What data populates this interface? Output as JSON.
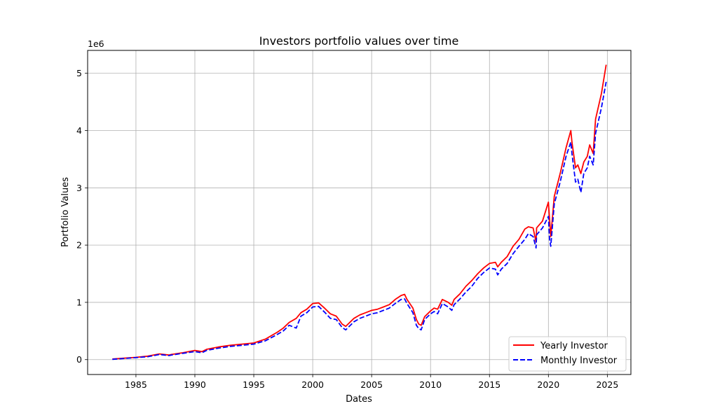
{
  "chart_data": {
    "type": "line",
    "title": "Investors portfolio values over time",
    "xlabel": "Dates",
    "ylabel": "Portfolio Values",
    "y_offset_label": "1e6",
    "x_ticks": [
      1985,
      1990,
      1995,
      2000,
      2005,
      2010,
      2015,
      2020,
      2025
    ],
    "y_ticks": [
      0,
      1,
      2,
      3,
      4,
      5
    ],
    "xlim": [
      1980.9,
      2027.0
    ],
    "ylim": [
      -0.26,
      5.4
    ],
    "grid": true,
    "legend_position": "bottom-right",
    "x": [
      1983.0,
      1984.0,
      1985.0,
      1986.0,
      1987.0,
      1987.8,
      1988.0,
      1989.0,
      1990.0,
      1990.6,
      1991.0,
      1992.0,
      1993.0,
      1994.0,
      1995.0,
      1996.0,
      1997.0,
      1997.5,
      1998.0,
      1998.6,
      1999.0,
      1999.5,
      2000.0,
      2000.5,
      2001.0,
      2001.5,
      2002.0,
      2002.5,
      2002.8,
      2003.0,
      2003.5,
      2004.0,
      2004.5,
      2005.0,
      2005.5,
      2006.0,
      2006.5,
      2007.0,
      2007.5,
      2007.8,
      2008.0,
      2008.5,
      2008.8,
      2009.0,
      2009.2,
      2009.5,
      2010.0,
      2010.3,
      2010.6,
      2011.0,
      2011.5,
      2011.8,
      2012.0,
      2012.5,
      2013.0,
      2013.5,
      2014.0,
      2014.5,
      2015.0,
      2015.5,
      2015.7,
      2016.0,
      2016.5,
      2017.0,
      2017.5,
      2018.0,
      2018.3,
      2018.7,
      2018.95,
      2019.0,
      2019.5,
      2020.0,
      2020.1,
      2020.2,
      2020.5,
      2021.0,
      2021.5,
      2021.9,
      2022.0,
      2022.3,
      2022.5,
      2022.75,
      2023.0,
      2023.3,
      2023.5,
      2023.8,
      2024.0,
      2024.5,
      2024.9
    ],
    "series": [
      {
        "name": "Yearly Investor",
        "color": "#ff0000",
        "style": "solid",
        "values": [
          0.01,
          0.025,
          0.04,
          0.06,
          0.1,
          0.08,
          0.09,
          0.12,
          0.16,
          0.14,
          0.18,
          0.22,
          0.25,
          0.27,
          0.29,
          0.36,
          0.48,
          0.55,
          0.65,
          0.72,
          0.82,
          0.88,
          0.98,
          0.99,
          0.9,
          0.8,
          0.76,
          0.62,
          0.58,
          0.62,
          0.72,
          0.78,
          0.82,
          0.86,
          0.88,
          0.92,
          0.96,
          1.05,
          1.12,
          1.14,
          1.05,
          0.9,
          0.7,
          0.62,
          0.6,
          0.75,
          0.85,
          0.9,
          0.88,
          1.05,
          1.0,
          0.95,
          1.05,
          1.15,
          1.28,
          1.38,
          1.5,
          1.6,
          1.68,
          1.7,
          1.62,
          1.7,
          1.8,
          1.98,
          2.1,
          2.28,
          2.32,
          2.3,
          2.05,
          2.3,
          2.42,
          2.75,
          2.45,
          2.15,
          2.85,
          3.25,
          3.7,
          4.0,
          3.8,
          3.35,
          3.4,
          3.25,
          3.45,
          3.55,
          3.75,
          3.6,
          4.2,
          4.65,
          5.15
        ]
      },
      {
        "name": "Monthly Investor",
        "color": "#0000ff",
        "style": "dashed",
        "values": [
          0.005,
          0.02,
          0.035,
          0.05,
          0.09,
          0.07,
          0.08,
          0.11,
          0.14,
          0.12,
          0.16,
          0.2,
          0.23,
          0.25,
          0.27,
          0.33,
          0.44,
          0.5,
          0.6,
          0.55,
          0.76,
          0.82,
          0.92,
          0.93,
          0.83,
          0.72,
          0.7,
          0.56,
          0.52,
          0.56,
          0.66,
          0.72,
          0.76,
          0.8,
          0.82,
          0.86,
          0.9,
          0.98,
          1.05,
          1.06,
          0.98,
          0.82,
          0.6,
          0.54,
          0.52,
          0.7,
          0.8,
          0.84,
          0.8,
          0.98,
          0.92,
          0.86,
          0.96,
          1.06,
          1.18,
          1.28,
          1.42,
          1.52,
          1.6,
          1.58,
          1.48,
          1.58,
          1.68,
          1.85,
          1.98,
          2.1,
          2.2,
          2.15,
          1.95,
          2.18,
          2.3,
          2.5,
          2.1,
          1.98,
          2.72,
          3.1,
          3.55,
          3.8,
          3.6,
          3.1,
          3.15,
          2.92,
          3.25,
          3.35,
          3.55,
          3.4,
          3.95,
          4.4,
          4.85
        ]
      }
    ]
  }
}
